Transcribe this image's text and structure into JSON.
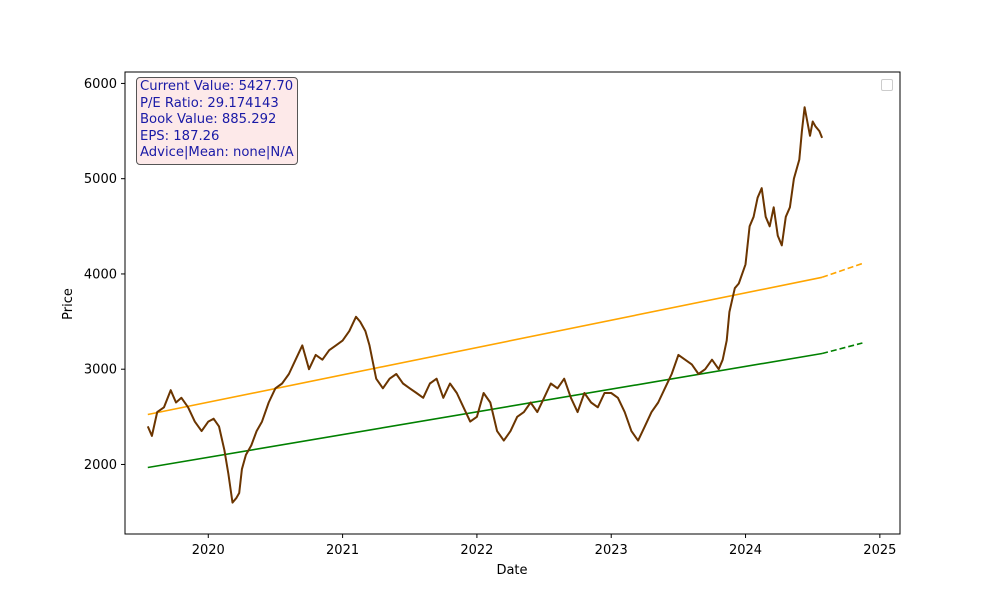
{
  "chart_data": {
    "type": "line",
    "title": "",
    "xlabel": "Date",
    "ylabel": "Price",
    "xlim": [
      2019.38,
      2025.15
    ],
    "ylim": [
      1270,
      6120
    ],
    "x_ticks": [
      2020,
      2021,
      2022,
      2023,
      2024,
      2025
    ],
    "x_tick_labels": [
      "2020",
      "2021",
      "2022",
      "2023",
      "2024",
      "2025"
    ],
    "y_ticks": [
      2000,
      3000,
      4000,
      5000,
      6000
    ],
    "y_tick_labels": [
      "2000",
      "3000",
      "4000",
      "5000",
      "6000"
    ],
    "legend": {
      "placement": "top-right",
      "entries": []
    },
    "annotation": {
      "lines": [
        "Current Value: 5427.70",
        "P/E Ratio: 29.174143",
        "Book Value: 885.292",
        "EPS: 187.26",
        "Advice|Mean: none|N/A"
      ],
      "placement": "top-left"
    },
    "series": [
      {
        "name": "price",
        "style": "solid",
        "color": "#6b3500",
        "x": [
          2019.55,
          2019.58,
          2019.62,
          2019.67,
          2019.72,
          2019.76,
          2019.8,
          2019.85,
          2019.9,
          2019.95,
          2020.0,
          2020.04,
          2020.08,
          2020.12,
          2020.15,
          2020.18,
          2020.21,
          2020.23,
          2020.25,
          2020.28,
          2020.32,
          2020.36,
          2020.4,
          2020.45,
          2020.5,
          2020.55,
          2020.6,
          2020.65,
          2020.7,
          2020.75,
          2020.8,
          2020.85,
          2020.9,
          2020.95,
          2021.0,
          2021.05,
          2021.1,
          2021.13,
          2021.17,
          2021.2,
          2021.25,
          2021.3,
          2021.35,
          2021.4,
          2021.45,
          2021.5,
          2021.55,
          2021.6,
          2021.65,
          2021.7,
          2021.75,
          2021.8,
          2021.85,
          2021.9,
          2021.95,
          2022.0,
          2022.05,
          2022.1,
          2022.15,
          2022.2,
          2022.25,
          2022.3,
          2022.35,
          2022.4,
          2022.45,
          2022.5,
          2022.55,
          2022.6,
          2022.65,
          2022.7,
          2022.75,
          2022.8,
          2022.85,
          2022.9,
          2022.95,
          2023.0,
          2023.05,
          2023.1,
          2023.15,
          2023.2,
          2023.25,
          2023.3,
          2023.35,
          2023.4,
          2023.45,
          2023.5,
          2023.55,
          2023.6,
          2023.65,
          2023.7,
          2023.75,
          2023.8,
          2023.83,
          2023.86,
          2023.88,
          2023.92,
          2023.95,
          2024.0,
          2024.03,
          2024.06,
          2024.09,
          2024.12,
          2024.15,
          2024.18,
          2024.21,
          2024.24,
          2024.27,
          2024.3,
          2024.33,
          2024.36,
          2024.4,
          2024.42,
          2024.44,
          2024.46,
          2024.48,
          2024.5,
          2024.52,
          2024.55,
          2024.57
        ],
        "y": [
          2400,
          2300,
          2550,
          2600,
          2780,
          2650,
          2700,
          2600,
          2450,
          2350,
          2450,
          2480,
          2400,
          2150,
          1900,
          1600,
          1650,
          1700,
          1950,
          2100,
          2200,
          2350,
          2450,
          2650,
          2800,
          2850,
          2950,
          3100,
          3250,
          3000,
          3150,
          3100,
          3200,
          3250,
          3300,
          3400,
          3550,
          3500,
          3400,
          3250,
          2900,
          2800,
          2900,
          2950,
          2850,
          2800,
          2750,
          2700,
          2850,
          2900,
          2700,
          2850,
          2750,
          2600,
          2450,
          2500,
          2750,
          2650,
          2350,
          2250,
          2350,
          2500,
          2550,
          2650,
          2550,
          2700,
          2850,
          2800,
          2900,
          2700,
          2550,
          2750,
          2650,
          2600,
          2750,
          2750,
          2700,
          2550,
          2350,
          2250,
          2400,
          2550,
          2650,
          2800,
          2950,
          3150,
          3100,
          3050,
          2950,
          3000,
          3100,
          3000,
          3100,
          3300,
          3600,
          3850,
          3900,
          4100,
          4500,
          4600,
          4800,
          4900,
          4600,
          4500,
          4700,
          4400,
          4300,
          4600,
          4700,
          5000,
          5200,
          5500,
          5750,
          5600,
          5450,
          5600,
          5550,
          5500,
          5427.7
        ]
      },
      {
        "name": "trend upper",
        "style": "solid",
        "color": "#ffa500",
        "x": [
          2019.55,
          2024.57
        ],
        "y": [
          2525,
          3965
        ]
      },
      {
        "name": "trend upper projection",
        "style": "dashed",
        "color": "#ffa500",
        "x": [
          2024.57,
          2024.87
        ],
        "y": [
          3965,
          4110
        ]
      },
      {
        "name": "trend lower",
        "style": "solid",
        "color": "#008000",
        "x": [
          2019.55,
          2024.57
        ],
        "y": [
          1968,
          3165
        ]
      },
      {
        "name": "trend lower projection",
        "style": "dashed",
        "color": "#008000",
        "x": [
          2024.57,
          2024.87
        ],
        "y": [
          3165,
          3275
        ]
      }
    ]
  }
}
